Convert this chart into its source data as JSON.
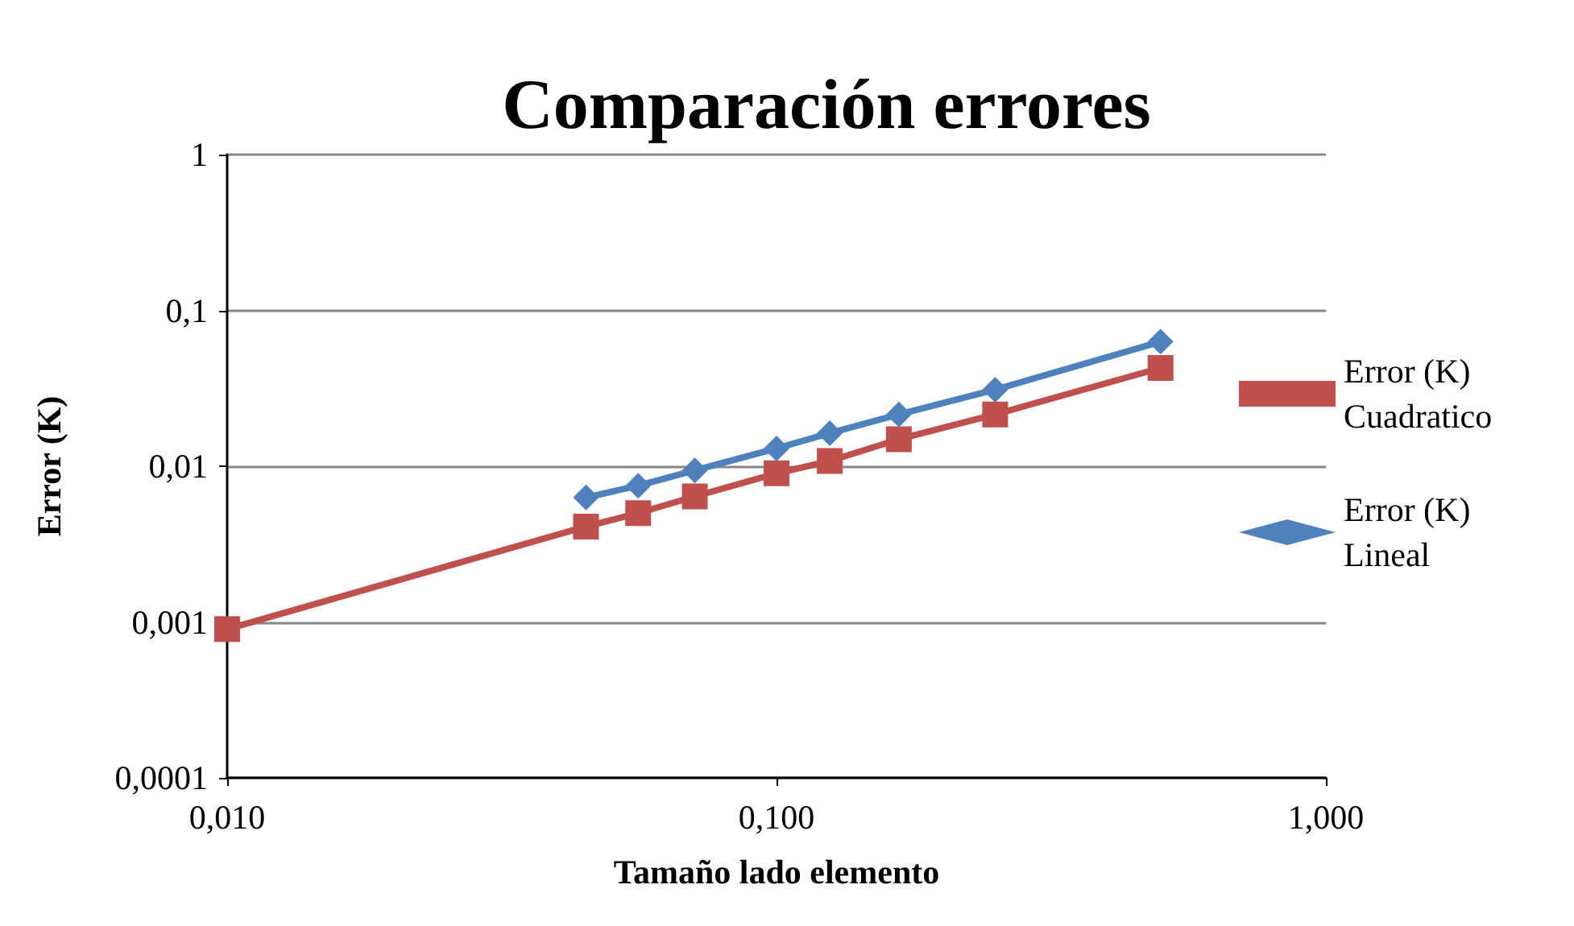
{
  "chart_data": {
    "type": "line",
    "title": "Comparación errores",
    "xlabel": "Tamaño lado elemento",
    "ylabel": "Error (K)",
    "log": "xy",
    "grid": "y",
    "legend": "right",
    "line_style": "solid",
    "xlim": [
      0.01,
      1
    ],
    "xticks": [
      {
        "value": 0.01,
        "label": "0,010"
      },
      {
        "value": 0.1,
        "label": "0,100"
      },
      {
        "value": 1,
        "label": "1,000"
      }
    ],
    "ylim": [
      0.0001,
      1
    ],
    "yticks": [
      {
        "value": 0.0001,
        "label": "0,0001"
      },
      {
        "value": 0.001,
        "label": "0,001"
      },
      {
        "value": 0.01,
        "label": "0,01"
      },
      {
        "value": 0.1,
        "label": "0,1"
      },
      {
        "value": 1,
        "label": "1"
      }
    ],
    "series": [
      {
        "name": "Error (K) Cuadratico",
        "color": "#c0504d",
        "marker": "square",
        "x": [
          0.01,
          0.045,
          0.056,
          0.071,
          0.1,
          0.125,
          0.167,
          0.25,
          0.5
        ],
        "values": [
          0.0009,
          0.0041,
          0.005,
          0.0064,
          0.009,
          0.0108,
          0.0149,
          0.0215,
          0.0427
        ]
      },
      {
        "name": "Error (K) Lineal",
        "color": "#4f81bd",
        "marker": "diamond",
        "x": [
          0.045,
          0.056,
          0.071,
          0.1,
          0.125,
          0.167,
          0.25,
          0.5
        ],
        "values": [
          0.0063,
          0.0075,
          0.0094,
          0.013,
          0.0163,
          0.0215,
          0.031,
          0.063
        ]
      }
    ]
  }
}
